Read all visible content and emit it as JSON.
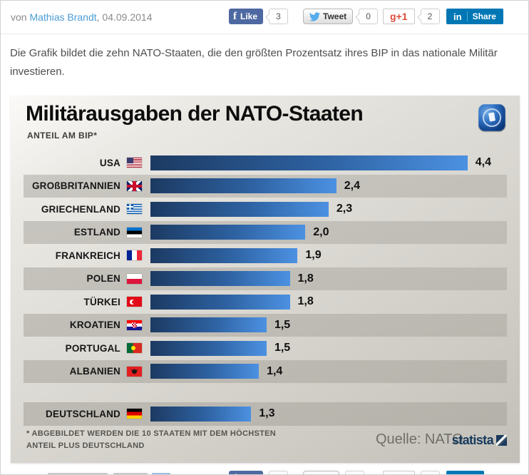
{
  "page": {
    "byline_prefix": "von",
    "author": "Mathias Brandt",
    "date": ", 04.09.2014",
    "description": "Die Grafik bildet die zehn NATO-Staaten, die den größten Prozentsatz ihres BIP in das nationale Militär investieren."
  },
  "share": {
    "facebook": {
      "icon": "f",
      "label": "Like",
      "count": "3"
    },
    "twitter": {
      "label": "Tweet",
      "count": "0"
    },
    "google": {
      "label": "g+1",
      "count": "2"
    },
    "linkedin": {
      "icon": "in",
      "label": "Share"
    }
  },
  "infographic": {
    "title": "Militärausgaben der NATO-Staaten",
    "subtitle": "ANTEIL AM BIP*",
    "footnote_line1": "* ABGEBILDET WERDEN DIE 10 STAATEN MIT DEM HÖCHSTEN",
    "footnote_line2": "ANTEIL PLUS DEUTSCHLAND",
    "source_label": "Quelle: NATO",
    "brand": "statista",
    "logo": "tagesschau-globe-icon",
    "accent_color": "#4c91e2",
    "bar_dark_color": "#1c3a62"
  },
  "rows": [
    {
      "label": "USA",
      "flag": "us",
      "value": 4.4,
      "display": "4,4",
      "striped": false
    },
    {
      "label": "GROßBRITANNIEN",
      "flag": "gb",
      "value": 2.4,
      "display": "2,4",
      "striped": true
    },
    {
      "label": "GRIECHENLAND",
      "flag": "gr",
      "value": 2.3,
      "display": "2,3",
      "striped": false
    },
    {
      "label": "ESTLAND",
      "flag": "ee",
      "value": 2.0,
      "display": "2,0",
      "striped": true
    },
    {
      "label": "FRANKREICH",
      "flag": "fr",
      "value": 1.9,
      "display": "1,9",
      "striped": false
    },
    {
      "label": "POLEN",
      "flag": "pl",
      "value": 1.8,
      "display": "1,8",
      "striped": true
    },
    {
      "label": "TÜRKEI",
      "flag": "tr",
      "value": 1.8,
      "display": "1,8",
      "striped": false
    },
    {
      "label": "KROATIEN",
      "flag": "hr",
      "value": 1.5,
      "display": "1,5",
      "striped": true
    },
    {
      "label": "PORTUGAL",
      "flag": "pt",
      "value": 1.5,
      "display": "1,5",
      "striped": false
    },
    {
      "label": "ALBANIEN",
      "flag": "al",
      "value": 1.4,
      "display": "1,4",
      "striped": true
    }
  ],
  "extra_row": {
    "label": "DEUTSCHLAND",
    "flag": "de",
    "value": 1.3,
    "display": "1,3",
    "striped": true
  },
  "chart_data": {
    "type": "bar",
    "orientation": "horizontal",
    "title": "Militärausgaben der NATO-Staaten",
    "subtitle": "ANTEIL AM BIP*",
    "categories": [
      "USA",
      "Großbritannien",
      "Griechenland",
      "Estland",
      "Frankreich",
      "Polen",
      "Türkei",
      "Kroatien",
      "Portugal",
      "Albanien",
      "Deutschland"
    ],
    "values": [
      4.4,
      2.4,
      2.3,
      2.0,
      1.9,
      1.8,
      1.8,
      1.5,
      1.5,
      1.4,
      1.3
    ],
    "value_labels": [
      "4,4",
      "2,4",
      "2,3",
      "2,0",
      "1,9",
      "1,8",
      "1,8",
      "1,5",
      "1,5",
      "1,4",
      "1,3"
    ],
    "xlim": [
      0,
      4.4
    ],
    "grid": false,
    "legend": "none",
    "footnote": "* Abgebildet werden die 10 Staaten mit dem höchsten Anteil plus Deutschland",
    "source": "NATO"
  }
}
